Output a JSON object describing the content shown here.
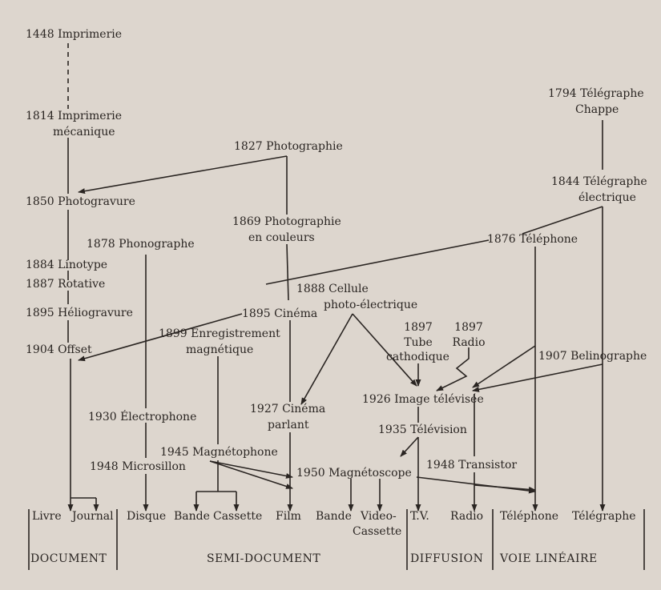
{
  "nodes": {
    "imprimerie": "1448 Imprimerie",
    "imprimerie_meca_1": "1814 Imprimerie",
    "imprimerie_meca_2": "mécanique",
    "photographie": "1827 Photographie",
    "photogravure": "1850 Photogravure",
    "photo_couleurs_1": "1869 Photographie",
    "photo_couleurs_2": "en couleurs",
    "phonographe": "1878 Phonographe",
    "linotype": "1884 Linotype",
    "rotative": "1887 Rotative",
    "heliogravure": "1895 Héliogravure",
    "offset": "1904 Offset",
    "cellule_1": "1888 Cellule",
    "cellule_2": "photo-électrique",
    "cinema": "1895 Cinéma",
    "enregistrement_1": "1899 Enregistrement",
    "enregistrement_2": "magnétique",
    "tube_1": "1897",
    "tube_2": "Tube",
    "tube_3": "cathodique",
    "radio_1": "1897",
    "radio_2": "Radio",
    "telegraphe_chappe_1": "1794 Télégraphe",
    "telegraphe_chappe_2": "Chappe",
    "telegraphe_elec_1": "1844 Télégraphe",
    "telegraphe_elec_2": "électrique",
    "telephone": "1876 Téléphone",
    "belinographe": "1907 Belinographe",
    "cinema_parlant_1": "1927 Cinéma",
    "cinema_parlant_2": "parlant",
    "image_televisee": "1926 Image télévisée",
    "electrophone": "1930 Électrophone",
    "television": "1935 Télévision",
    "magnetophone": "1945 Magnétophone",
    "microsillon": "1948 Microsillon",
    "transistor": "1948 Transistor",
    "magnetoscope": "1950 Magnétoscope"
  },
  "outputs": {
    "livre": "Livre",
    "journal": "Journal",
    "disque": "Disque",
    "bande1": "Bande",
    "cassette": "Cassette",
    "film": "Film",
    "bande2": "Bande",
    "video_1": "Video-",
    "video_2": "Cassette",
    "tv": "T.V.",
    "radio": "Radio",
    "telephone": "Téléphone",
    "telegraphe": "Télégraphe"
  },
  "categories": {
    "document": "DOCUMENT",
    "semi_document": "SEMI-DOCUMENT",
    "diffusion": "DIFFUSION",
    "voie_lineaire": "VOIE LINÉAIRE"
  }
}
